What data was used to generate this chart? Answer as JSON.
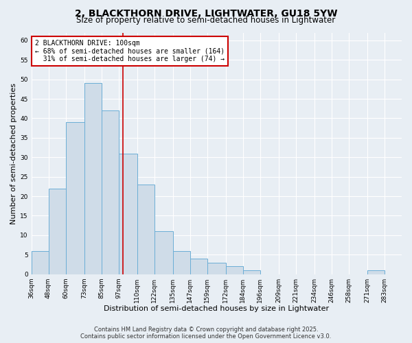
{
  "title": "2, BLACKTHORN DRIVE, LIGHTWATER, GU18 5YW",
  "subtitle": "Size of property relative to semi-detached houses in Lightwater",
  "xlabel": "Distribution of semi-detached houses by size in Lightwater",
  "ylabel": "Number of semi-detached properties",
  "bin_labels": [
    "36sqm",
    "48sqm",
    "60sqm",
    "73sqm",
    "85sqm",
    "97sqm",
    "110sqm",
    "122sqm",
    "135sqm",
    "147sqm",
    "159sqm",
    "172sqm",
    "184sqm",
    "196sqm",
    "209sqm",
    "221sqm",
    "234sqm",
    "246sqm",
    "258sqm",
    "271sqm",
    "283sqm"
  ],
  "bin_edges": [
    36,
    48,
    60,
    73,
    85,
    97,
    110,
    122,
    135,
    147,
    159,
    172,
    184,
    196,
    209,
    221,
    234,
    246,
    258,
    271,
    283,
    295
  ],
  "bar_heights": [
    6,
    22,
    39,
    49,
    42,
    31,
    23,
    11,
    6,
    4,
    3,
    2,
    1,
    0,
    0,
    0,
    0,
    0,
    0,
    1,
    0
  ],
  "bar_fill_color": "#cfdce8",
  "bar_edge_color": "#6baed6",
  "ylim": [
    0,
    62
  ],
  "yticks": [
    0,
    5,
    10,
    15,
    20,
    25,
    30,
    35,
    40,
    45,
    50,
    55,
    60
  ],
  "property_line_x": 100,
  "property_line_color": "#cc0000",
  "annotation_title": "2 BLACKTHORN DRIVE: 100sqm",
  "annotation_line1": "← 68% of semi-detached houses are smaller (164)",
  "annotation_line2": "  31% of semi-detached houses are larger (74) →",
  "annotation_box_color": "#cc0000",
  "footer1": "Contains HM Land Registry data © Crown copyright and database right 2025.",
  "footer2": "Contains public sector information licensed under the Open Government Licence v3.0.",
  "bg_color": "#e8eef4",
  "plot_bg_color": "#e8eef4",
  "grid_color": "#ffffff",
  "title_fontsize": 10,
  "subtitle_fontsize": 8.5,
  "axis_label_fontsize": 8,
  "tick_fontsize": 6.5,
  "annotation_fontsize": 7,
  "footer_fontsize": 6
}
